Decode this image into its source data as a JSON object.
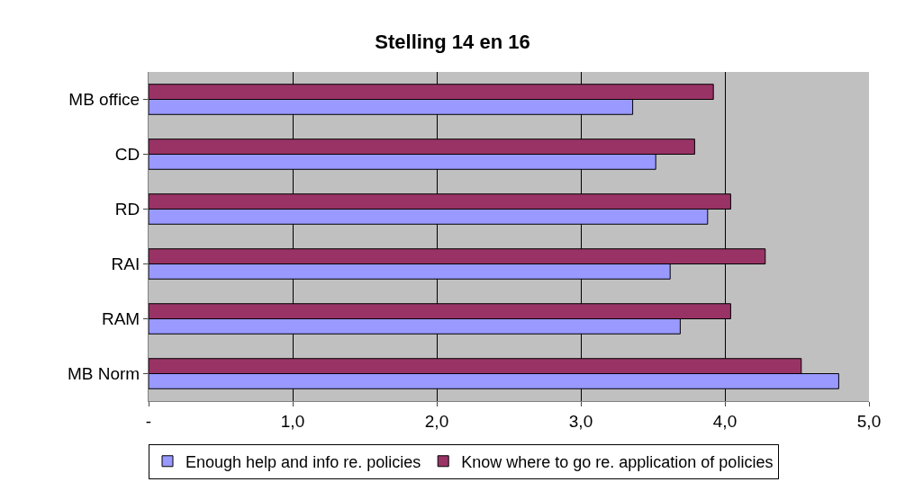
{
  "chart_data": {
    "type": "bar",
    "orientation": "horizontal",
    "title": "Stelling 14 en 16",
    "categories": [
      "MB office",
      "CD",
      "RD",
      "RAI",
      "RAM",
      "MB Norm"
    ],
    "series": [
      {
        "name": "Enough help and info re. policies",
        "color": "#9999ff",
        "values": [
          3.36,
          3.52,
          3.88,
          3.62,
          3.69,
          4.79
        ]
      },
      {
        "name": "Know where to go re. application of policies",
        "color": "#993366",
        "values": [
          3.92,
          3.79,
          4.04,
          4.28,
          4.04,
          4.53
        ]
      }
    ],
    "xlim": [
      0,
      5
    ],
    "xticks": [
      {
        "value": 0,
        "label": "-"
      },
      {
        "value": 1,
        "label": "1,0"
      },
      {
        "value": 2,
        "label": "2,0"
      },
      {
        "value": 3,
        "label": "3,0"
      },
      {
        "value": 4,
        "label": "4,0"
      },
      {
        "value": 5,
        "label": "5,0"
      }
    ],
    "grid": "x",
    "legend": "bottom"
  }
}
